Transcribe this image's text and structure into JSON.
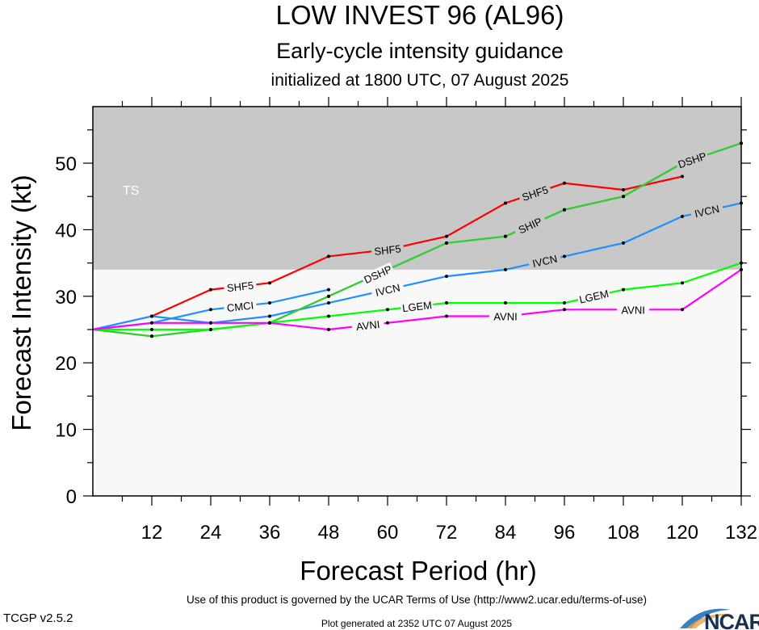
{
  "chart_data": {
    "type": "line",
    "title": "LOW INVEST 96 (AL96)",
    "subtitle": "Early-cycle intensity guidance",
    "subtitle2": "initialized at 1800 UTC, 07 August 2025",
    "xlabel": "Forecast Period (hr)",
    "ylabel": "Forecast Intensity (kt)",
    "xlim": [
      0,
      132
    ],
    "ylim": [
      0,
      58.5
    ],
    "xticks": [
      12,
      24,
      36,
      48,
      60,
      72,
      84,
      96,
      108,
      120,
      132
    ],
    "yticks": [
      0,
      10,
      20,
      30,
      40,
      50
    ],
    "threshold": {
      "label": "TS",
      "value": 34
    },
    "series": [
      {
        "name": "SHF5",
        "color": "#ff0000",
        "x": [
          12,
          24,
          36,
          48,
          60,
          72,
          84,
          96,
          108,
          120
        ],
        "values": [
          27,
          31,
          32,
          36,
          37,
          39,
          44,
          47,
          46,
          48
        ]
      },
      {
        "name": "CMCI",
        "color": "#1e90ff",
        "x": [
          0,
          12,
          24,
          36,
          48
        ],
        "values": [
          25,
          26,
          28,
          29,
          31
        ]
      },
      {
        "name": "IVCN",
        "color": "#1e90ff",
        "x": [
          0,
          12,
          24,
          36,
          48,
          60,
          72,
          84,
          96,
          108,
          120,
          132
        ],
        "values": [
          25,
          27,
          26,
          27,
          29,
          31,
          33,
          34,
          36,
          38,
          42,
          44
        ]
      },
      {
        "name": "DSHP",
        "color": "#33cc33",
        "x": [
          0,
          12,
          24,
          36,
          48,
          60,
          72,
          84,
          96,
          108,
          120,
          132
        ],
        "values": [
          25,
          24,
          25,
          26,
          30,
          34,
          38,
          39,
          43,
          45,
          50,
          53
        ]
      },
      {
        "name": "SHIP",
        "color": "#33cc33",
        "x": [
          0,
          12,
          24,
          36,
          48,
          60,
          72,
          84,
          96,
          108,
          120,
          132
        ],
        "values": [
          25,
          24,
          25,
          26,
          30,
          34,
          38,
          39,
          43,
          45,
          50,
          53
        ]
      },
      {
        "name": "LGEM",
        "color": "#00ff00",
        "x": [
          0,
          12,
          24,
          36,
          48,
          60,
          72,
          84,
          96,
          108,
          120,
          132
        ],
        "values": [
          25,
          25,
          25,
          26,
          27,
          28,
          29,
          29,
          29,
          31,
          32,
          35
        ]
      },
      {
        "name": "AVNI",
        "color": "#ff00ff",
        "x": [
          0,
          12,
          24,
          36,
          48,
          60,
          72,
          84,
          96,
          108,
          120,
          132
        ],
        "values": [
          25,
          26,
          26,
          26,
          25,
          26,
          27,
          27,
          28,
          28,
          28,
          34
        ]
      }
    ]
  },
  "footer": {
    "terms": "Use of this product is governed by the UCAR Terms of Use (http://www2.ucar.edu/terms-of-use)",
    "version": "TCGP v2.5.2",
    "generated": "Plot generated at 2352 UTC   07 August 2025",
    "logo": "NCAR"
  }
}
